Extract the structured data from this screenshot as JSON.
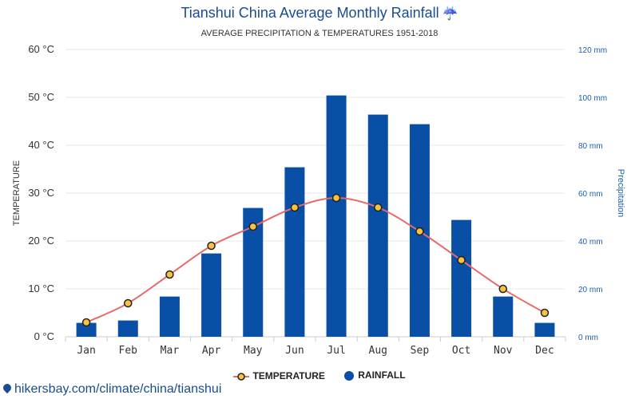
{
  "header": {
    "title": "Tianshui China Average Monthly Rainfall",
    "subtitle": "AVERAGE PRECIPITATION & TEMPERATURES 1951-2018"
  },
  "colors": {
    "bar": "#0a4fa6",
    "line": "#e86a6a",
    "marker_fill": "#f7c242",
    "marker_stroke": "#222222",
    "title": "#1a4d8f",
    "right_axis": "#1a5fb0"
  },
  "chart_data": {
    "type": "bar",
    "categories": [
      "Jan",
      "Feb",
      "Mar",
      "Apr",
      "May",
      "Jun",
      "Jul",
      "Aug",
      "Sep",
      "Oct",
      "Nov",
      "Dec"
    ],
    "series": [
      {
        "name": "TEMPERATURE",
        "type": "line",
        "axis": "left",
        "values": [
          3,
          7,
          13,
          19,
          23,
          27,
          29,
          27,
          22,
          16,
          10,
          5
        ]
      },
      {
        "name": "RAINFALL",
        "type": "bar",
        "axis": "right",
        "values": [
          5.8,
          6.8,
          16.8,
          34.8,
          53.8,
          70.8,
          100.8,
          92.8,
          88.8,
          48.8,
          16.8,
          5.8
        ]
      }
    ],
    "ylabel": "TEMPERATURE",
    "y2label": "Precipitation",
    "ylim": [
      0,
      60
    ],
    "y2lim": [
      0,
      120
    ],
    "yticks": [
      "0 °C",
      "10 °C",
      "20 °C",
      "30 °C",
      "40 °C",
      "50 °C",
      "60 °C"
    ],
    "y2ticks": [
      "0 mm",
      "20 mm",
      "40 mm",
      "60 mm",
      "80 mm",
      "100 mm",
      "120 mm"
    ],
    "grid": true,
    "legend_position": "bottom-center"
  },
  "legend": {
    "temperature": "TEMPERATURE",
    "rainfall": "RAINFALL"
  },
  "footer": {
    "link_text": "hikersbay.com/climate/china/tianshui"
  }
}
